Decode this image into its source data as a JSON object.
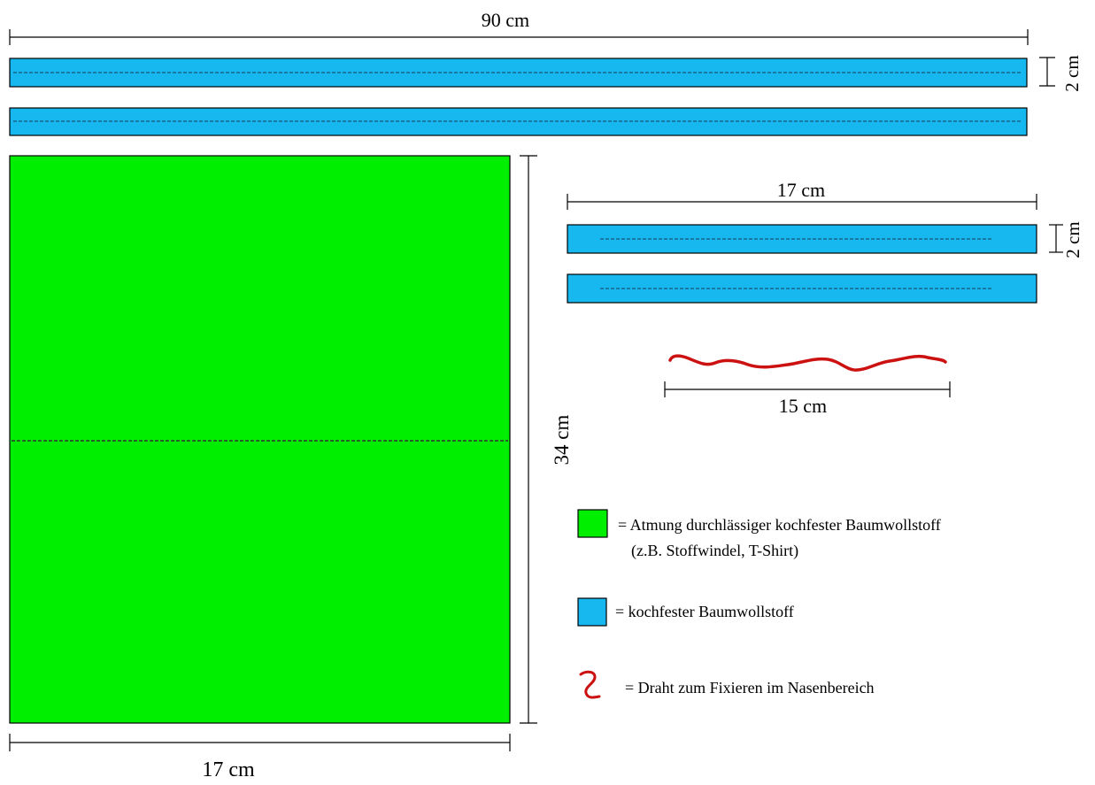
{
  "dimensions": {
    "long_strip_length": "90 cm",
    "long_strip_width": "2 cm",
    "short_strip_length": "17 cm",
    "short_strip_width": "2 cm",
    "fabric_height": "34 cm",
    "fabric_width": "17 cm",
    "wire_length": "15 cm"
  },
  "legend": {
    "green": {
      "line1": "= Atmung durchlässiger kochfester Baumwollstoff",
      "line2": "(z.B. Stoffwindel, T-Shirt)"
    },
    "blue": {
      "line1": "= kochfester Baumwollstoff"
    },
    "wire": {
      "line1": "= Draht zum Fixieren im Nasenbereich"
    }
  },
  "colors": {
    "fabric_green": "#00ee00",
    "strip_blue": "#17b7ef",
    "wire_red": "#cc1111",
    "line": "#000000"
  }
}
